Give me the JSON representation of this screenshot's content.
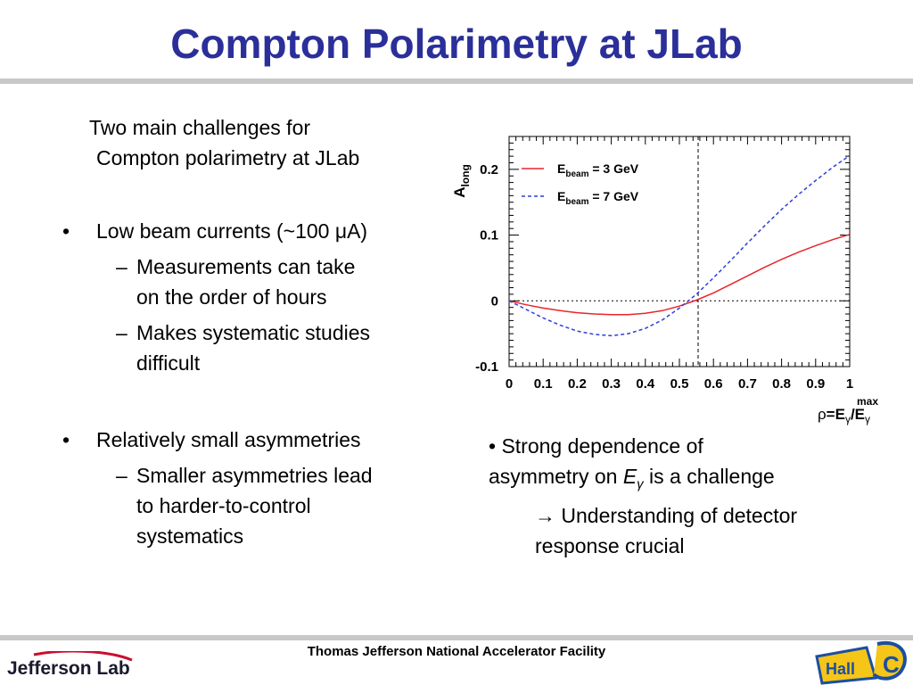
{
  "title": "Compton Polarimetry at JLab",
  "intro_lines": [
    "Two main challenges for",
    "Compton polarimetry at JLab"
  ],
  "bullets": [
    {
      "text": "Low beam currents (~100 μA)",
      "subs": [
        {
          "lines": [
            "Measurements can take",
            "on the order of hours"
          ]
        },
        {
          "lines": [
            "Makes systematic studies",
            "difficult"
          ]
        }
      ]
    },
    {
      "text": "Relatively small asymmetries",
      "subs": [
        {
          "lines": [
            "Smaller asymmetries lead",
            "to harder-to-control",
            "systematics"
          ]
        }
      ]
    }
  ],
  "bullet_symbol": "•",
  "dash_symbol": "–",
  "right_note": {
    "line1": "• Strong dependence of",
    "line2_pre": "asymmetry on ",
    "line2_var": "E",
    "line2_sub": "γ",
    "line2_post": " is a challenge",
    "line3": "→ Understanding of detector",
    "line4": "response crucial"
  },
  "footer": "Thomas Jefferson National Accelerator Facility",
  "logos": {
    "jlab": "Jefferson Lab",
    "hallc": "Hall C"
  },
  "chart_data": {
    "type": "line",
    "ylabel": "A",
    "ylabel_sub": "long",
    "xlabel_parts": {
      "rho": "ρ",
      "eq": "=E",
      "sub1": "γ",
      "slash": "/E",
      "sub2": "γ",
      "sup": "max"
    },
    "xlim": [
      0,
      1
    ],
    "ylim": [
      -0.1,
      0.25
    ],
    "xticks": [
      "0",
      "0.1",
      "0.2",
      "0.3",
      "0.4",
      "0.5",
      "0.6",
      "0.7",
      "0.8",
      "0.9",
      "1"
    ],
    "yticks": [
      {
        "value": -0.1,
        "label": "-0.1"
      },
      {
        "value": 0,
        "label": "0"
      },
      {
        "value": 0.1,
        "label": "0.1"
      },
      {
        "value": 0.2,
        "label": "0.2"
      }
    ],
    "reference_lines": {
      "horizontal_y": 0,
      "vertical_x": 0.555
    },
    "grid": false,
    "legend_position": "top-left",
    "series": [
      {
        "name": "E_beam = 3 GeV",
        "legend": {
          "pre": "E",
          "sub": "beam",
          "post": " = 3 GeV"
        },
        "color": "#e8262a",
        "style": "solid",
        "x": [
          0,
          0.05,
          0.1,
          0.15,
          0.2,
          0.25,
          0.3,
          0.35,
          0.4,
          0.45,
          0.5,
          0.55,
          0.6,
          0.65,
          0.7,
          0.75,
          0.8,
          0.85,
          0.9,
          0.95,
          1.0
        ],
        "y": [
          0,
          -0.006,
          -0.011,
          -0.015,
          -0.018,
          -0.02,
          -0.021,
          -0.021,
          -0.019,
          -0.015,
          -0.008,
          0.001,
          0.012,
          0.025,
          0.038,
          0.051,
          0.063,
          0.074,
          0.084,
          0.093,
          0.101
        ]
      },
      {
        "name": "E_beam = 7 GeV",
        "legend": {
          "pre": "E",
          "sub": "beam",
          "post": " = 7 GeV"
        },
        "color": "#2f3fd6",
        "style": "dashed",
        "x": [
          0,
          0.05,
          0.1,
          0.15,
          0.2,
          0.25,
          0.3,
          0.35,
          0.4,
          0.45,
          0.5,
          0.55,
          0.6,
          0.65,
          0.7,
          0.75,
          0.8,
          0.85,
          0.9,
          0.95,
          1.0
        ],
        "y": [
          0,
          -0.013,
          -0.026,
          -0.037,
          -0.046,
          -0.051,
          -0.053,
          -0.05,
          -0.042,
          -0.029,
          -0.011,
          0.01,
          0.035,
          0.061,
          0.088,
          0.114,
          0.139,
          0.162,
          0.183,
          0.203,
          0.221
        ]
      }
    ]
  }
}
